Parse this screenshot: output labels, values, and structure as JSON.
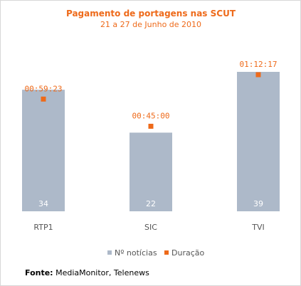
{
  "chart_data": {
    "type": "bar",
    "title": "Pagamento de portagens nas SCUT",
    "subtitle": "21 a 27 de Junho de 2010",
    "categories": [
      "RTP1",
      "SIC",
      "TVI"
    ],
    "series": [
      {
        "name": "Nº notícias",
        "values": [
          34,
          22,
          39
        ],
        "labels": [
          "34",
          "22",
          "39"
        ],
        "color": "#adb9c9"
      },
      {
        "name": "Duração",
        "values_seconds": [
          3563,
          2700,
          4337
        ],
        "labels": [
          "00:59:23",
          "00:45:00",
          "01:12:17"
        ],
        "color": "#ee6a1a"
      }
    ],
    "ylim": [
      0,
      45
    ],
    "grid": false,
    "legend_position": "bottom"
  },
  "colors": {
    "title": "#ee6a1a",
    "bar": "#adb9c9",
    "marker": "#ee6a1a",
    "bar_label": "#ffffff",
    "category": "#555555",
    "legend_text": "#555555"
  },
  "source": {
    "label": "Fonte:",
    "text": "MediaMonitor, Telenews"
  }
}
